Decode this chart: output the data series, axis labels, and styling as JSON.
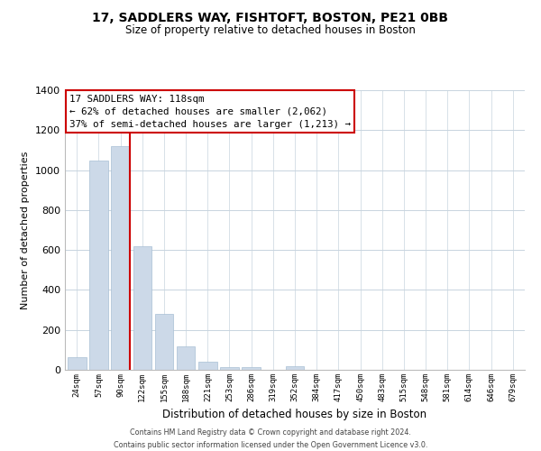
{
  "title": "17, SADDLERS WAY, FISHTOFT, BOSTON, PE21 0BB",
  "subtitle": "Size of property relative to detached houses in Boston",
  "xlabel": "Distribution of detached houses by size in Boston",
  "ylabel": "Number of detached properties",
  "bar_color": "#ccd9e8",
  "bar_edge_color": "#a8bfd4",
  "categories": [
    "24sqm",
    "57sqm",
    "90sqm",
    "122sqm",
    "155sqm",
    "188sqm",
    "221sqm",
    "253sqm",
    "286sqm",
    "319sqm",
    "352sqm",
    "384sqm",
    "417sqm",
    "450sqm",
    "483sqm",
    "515sqm",
    "548sqm",
    "581sqm",
    "614sqm",
    "646sqm",
    "679sqm"
  ],
  "values": [
    65,
    1050,
    1120,
    620,
    280,
    118,
    42,
    15,
    15,
    0,
    20,
    0,
    0,
    0,
    0,
    0,
    0,
    0,
    0,
    0,
    0
  ],
  "ylim": [
    0,
    1400
  ],
  "yticks": [
    0,
    200,
    400,
    600,
    800,
    1000,
    1200,
    1400
  ],
  "property_line_color": "#cc0000",
  "annotation_title": "17 SADDLERS WAY: 118sqm",
  "annotation_line1": "← 62% of detached houses are smaller (2,062)",
  "annotation_line2": "37% of semi-detached houses are larger (1,213) →",
  "annotation_box_color": "#ffffff",
  "annotation_box_edge": "#cc0000",
  "footer_line1": "Contains HM Land Registry data © Crown copyright and database right 2024.",
  "footer_line2": "Contains public sector information licensed under the Open Government Licence v3.0.",
  "background_color": "#ffffff",
  "grid_color": "#c8d4de"
}
